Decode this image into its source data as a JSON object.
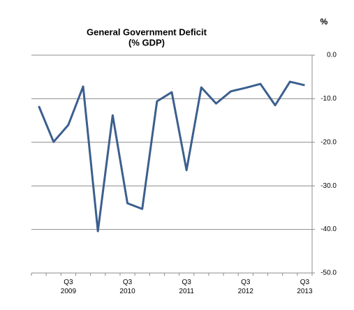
{
  "chart_data": {
    "type": "line",
    "title": "General Government Deficit",
    "subtitle": "(% GDP)",
    "ylabel": "%",
    "categories": [
      null,
      null,
      "Q3 2009",
      null,
      null,
      null,
      "Q3 2010",
      null,
      null,
      null,
      "Q3 2011",
      null,
      null,
      null,
      "Q3 2012",
      null,
      null,
      null,
      "Q3 2013"
    ],
    "series": [
      {
        "name": "General Government Deficit",
        "color": "#3c5f8e",
        "values": [
          -11.7,
          -19.9,
          -16.0,
          -7.2,
          -40.4,
          -13.8,
          -34.0,
          -35.3,
          -10.6,
          -8.5,
          -26.4,
          -7.4,
          -11.1,
          -8.3,
          -7.5,
          -6.6,
          -11.5,
          -6.1,
          -6.9
        ]
      }
    ],
    "ylim": [
      -50,
      0
    ],
    "yticks": [
      {
        "value": 0,
        "label": "0.0"
      },
      {
        "value": -10,
        "label": "-10.0"
      },
      {
        "value": -20,
        "label": "-20.0"
      },
      {
        "value": -30,
        "label": "-30.0"
      },
      {
        "value": -40,
        "label": "-40.0"
      },
      {
        "value": -50,
        "label": "-50.0"
      }
    ],
    "grid": true
  }
}
